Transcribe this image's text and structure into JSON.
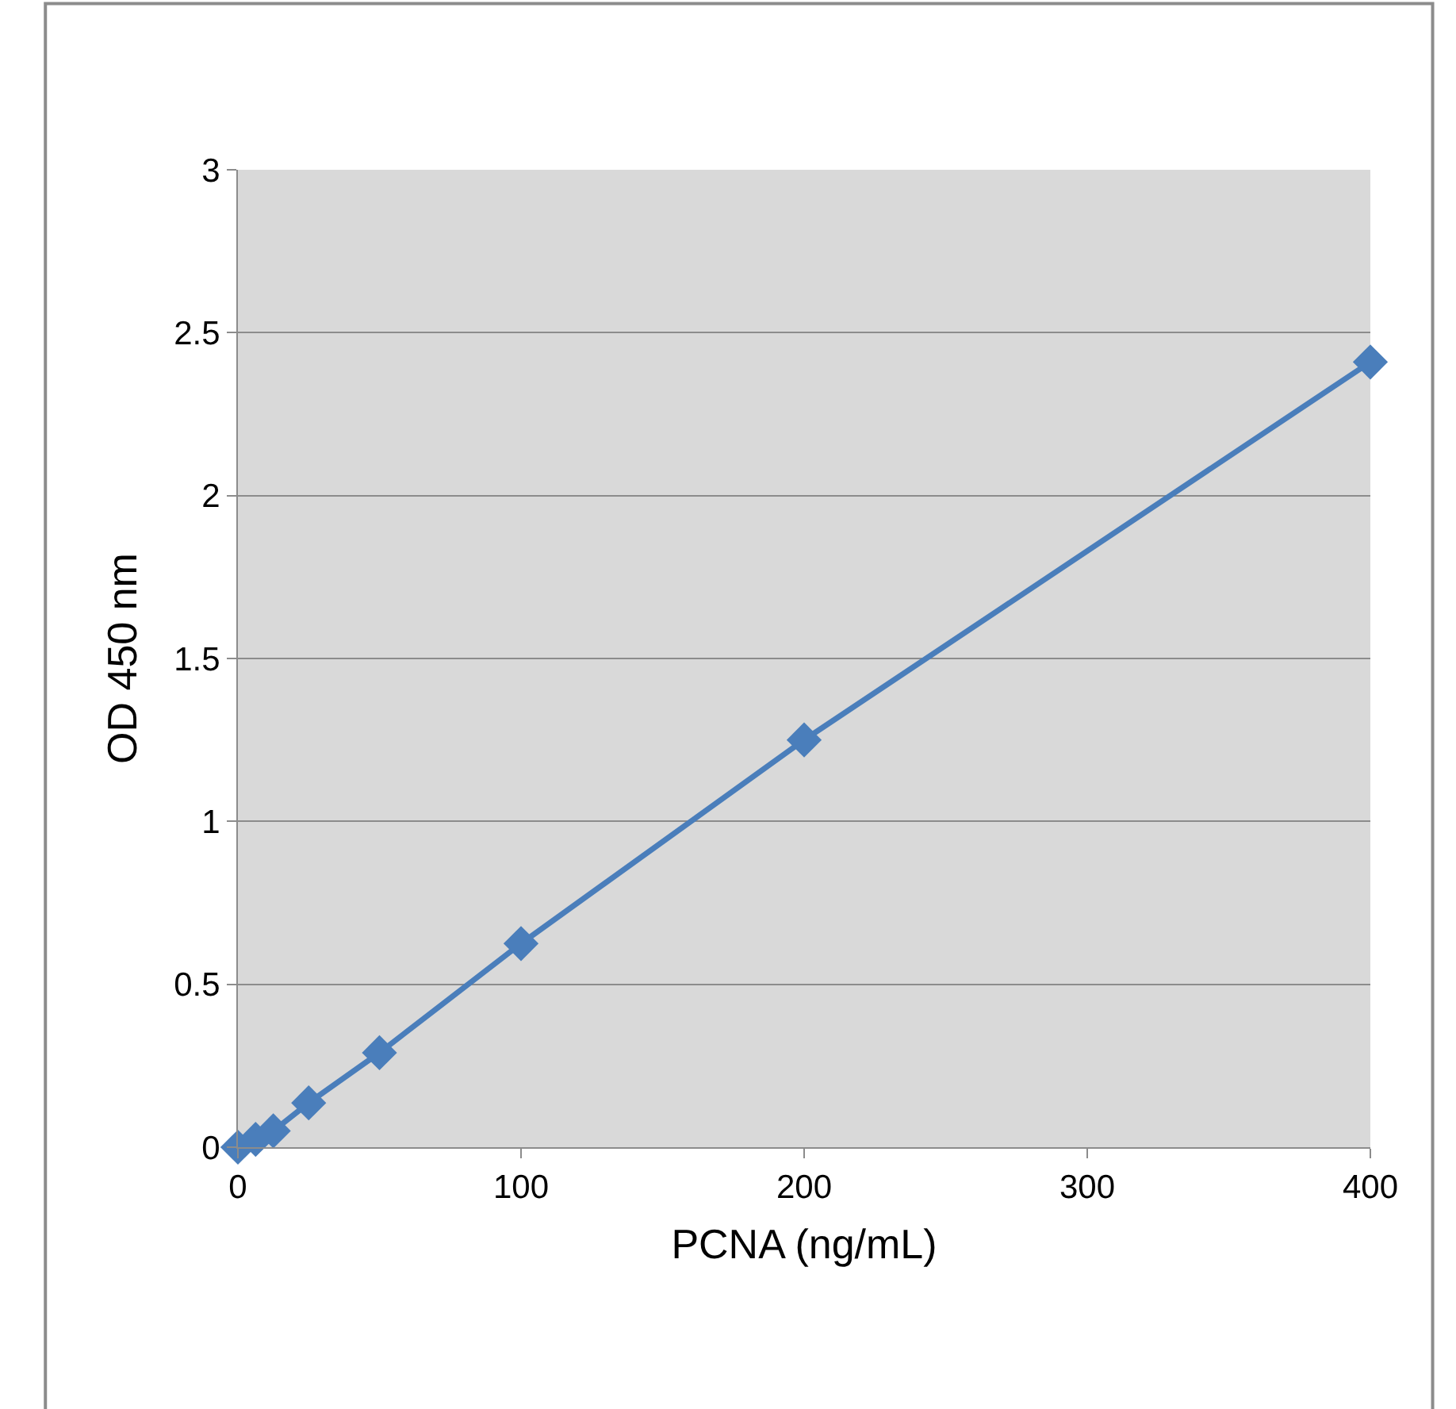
{
  "chart_data": {
    "type": "line",
    "xlabel": "PCNA (ng/mL)",
    "ylabel": "OD 450 nm",
    "x": [
      0,
      6.25,
      12.5,
      25,
      50,
      100,
      200,
      400
    ],
    "series": [
      {
        "color": "#4a7ebb",
        "values": [
          0,
          0.024,
          0.05,
          0.136,
          0.29,
          0.625,
          1.25,
          2.41
        ]
      }
    ],
    "xlim": [
      0,
      400
    ],
    "xticks": [
      0,
      100,
      200,
      300,
      400
    ],
    "ylim": [
      0,
      3
    ],
    "yticks": [
      0,
      0.5,
      1,
      1.5,
      2,
      2.5,
      3
    ],
    "grid": "y",
    "marker": "diamond",
    "line_style": "solid"
  }
}
